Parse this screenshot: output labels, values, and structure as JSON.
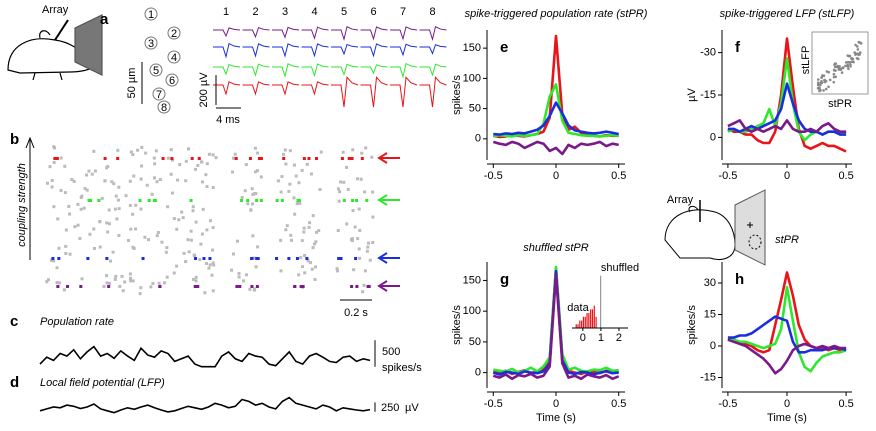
{
  "panel_a": {
    "letter": "a",
    "array_label": "Array",
    "electrodes": [
      "1",
      "2",
      "3",
      "4",
      "5",
      "6",
      "7",
      "8"
    ],
    "columns": [
      "1",
      "2",
      "3",
      "4",
      "5",
      "6",
      "7",
      "8"
    ],
    "scale_um": "50 µm",
    "scale_uv": "200 µV",
    "scale_ms": "4 ms"
  },
  "panel_b": {
    "letter": "b",
    "ylabel": "coupling strength",
    "scale_s": "0.2 s"
  },
  "panel_h_array": "Array",
  "chart_data": [
    {
      "type": "trace",
      "letter": "c",
      "title": "Population rate",
      "ylim": [
        0,
        700
      ],
      "scale_bar": {
        "value": 500,
        "unit": "spikes/s"
      },
      "color": "#000",
      "values": [
        150,
        280,
        220,
        350,
        300,
        420,
        250,
        380,
        480,
        300,
        350,
        260,
        400,
        300,
        220,
        450,
        320,
        280,
        400,
        350,
        200,
        250,
        300,
        150,
        100,
        100,
        100,
        300,
        380,
        250,
        200,
        350,
        300,
        280,
        150,
        120,
        250,
        380,
        200,
        150,
        300,
        350,
        280,
        200,
        180,
        280,
        300,
        200,
        250,
        220
      ]
    },
    {
      "type": "trace",
      "letter": "d",
      "title": "Local field potential (LFP)",
      "ylim": [
        -300,
        500
      ],
      "scale_bar": {
        "value": 250,
        "unit": "µV"
      },
      "color": "#000",
      "values": [
        0,
        50,
        100,
        80,
        150,
        120,
        60,
        100,
        180,
        50,
        0,
        -50,
        20,
        80,
        40,
        100,
        150,
        80,
        20,
        -30,
        0,
        60,
        120,
        80,
        40,
        100,
        200,
        150,
        80,
        120,
        300,
        250,
        150,
        200,
        100,
        50,
        250,
        350,
        200,
        150,
        100,
        50,
        150,
        100,
        0,
        80,
        50,
        20,
        0,
        30
      ]
    },
    {
      "type": "line",
      "letter": "e",
      "title": "spike-triggered population rate (stPR)",
      "ylabel": "spikes/s",
      "xlim": [
        -0.55,
        0.55
      ],
      "xticks": [
        -0.5,
        0,
        0.5
      ],
      "ylim": [
        -35,
        180
      ],
      "yticks": [
        0,
        50,
        100,
        150
      ],
      "x": [
        -0.5,
        -0.45,
        -0.4,
        -0.35,
        -0.3,
        -0.25,
        -0.2,
        -0.15,
        -0.1,
        -0.05,
        0,
        0.05,
        0.1,
        0.15,
        0.2,
        0.25,
        0.3,
        0.35,
        0.4,
        0.45,
        0.5
      ],
      "series": [
        {
          "color": "#e8141a",
          "values": [
            5,
            3,
            4,
            6,
            5,
            4,
            6,
            8,
            12,
            35,
            170,
            40,
            15,
            20,
            10,
            6,
            5,
            4,
            6,
            5,
            5
          ]
        },
        {
          "color": "#2ee82e",
          "values": [
            4,
            6,
            5,
            4,
            6,
            5,
            6,
            8,
            25,
            70,
            90,
            30,
            10,
            8,
            6,
            5,
            5,
            4,
            5,
            6,
            5
          ]
        },
        {
          "color": "#1a2ee0",
          "values": [
            8,
            7,
            9,
            8,
            10,
            9,
            12,
            15,
            22,
            38,
            60,
            42,
            22,
            14,
            12,
            10,
            9,
            10,
            12,
            10,
            8
          ]
        },
        {
          "color": "#7a1a8a",
          "values": [
            -5,
            -8,
            -10,
            -5,
            -8,
            -15,
            -10,
            -5,
            -8,
            -20,
            -15,
            -25,
            -10,
            -15,
            -8,
            -10,
            -8,
            -5,
            -12,
            -8,
            -10
          ]
        }
      ]
    },
    {
      "type": "line",
      "letter": "f",
      "title": "spike-triggered LFP (stLFP)",
      "ylabel": "µV",
      "xlim": [
        -0.55,
        0.55
      ],
      "xticks": [
        -0.5,
        0,
        0.5
      ],
      "ylim": [
        8,
        -38
      ],
      "yticks": [
        -30,
        -15,
        0
      ],
      "x": [
        -0.5,
        -0.45,
        -0.4,
        -0.35,
        -0.3,
        -0.25,
        -0.2,
        -0.15,
        -0.1,
        -0.05,
        0,
        0.05,
        0.1,
        0.15,
        0.2,
        0.25,
        0.3,
        0.35,
        0.4,
        0.45,
        0.5
      ],
      "series": [
        {
          "color": "#e8141a",
          "values": [
            -3,
            -2,
            -2,
            -1,
            -1,
            1,
            2,
            2,
            -2,
            -15,
            -35,
            -18,
            -3,
            3,
            4,
            3,
            2,
            3,
            3,
            4,
            5
          ]
        },
        {
          "color": "#2ee82e",
          "values": [
            -2,
            -3,
            -2,
            -2,
            -3,
            -4,
            -5,
            -10,
            -4,
            -12,
            -28,
            -12,
            -2,
            1,
            -1,
            -2,
            -1,
            -2,
            -2,
            -1,
            -2
          ]
        },
        {
          "color": "#1a2ee0",
          "values": [
            -3,
            -3,
            -2,
            -3,
            -4,
            -3,
            -4,
            -5,
            -6,
            -10,
            -19,
            -12,
            -6,
            -3,
            -2,
            -2,
            -1,
            -2,
            -2,
            -1,
            -1
          ]
        },
        {
          "color": "#7a1a8a",
          "values": [
            -4,
            -5,
            -6,
            -3,
            -2,
            -3,
            -2,
            -3,
            -4,
            -3,
            -6,
            -3,
            -2,
            -2,
            -3,
            -2,
            -4,
            -5,
            -3,
            -2,
            -2
          ]
        }
      ],
      "inset": {
        "xlabel": "stPR",
        "ylabel": "stLFP"
      }
    },
    {
      "type": "line",
      "letter": "g",
      "title": "shuffled stPR",
      "ylabel": "spikes/s",
      "xlabel": "Time (s)",
      "xlim": [
        -0.55,
        0.55
      ],
      "xticks": [
        -0.5,
        0,
        0.5
      ],
      "ylim": [
        -25,
        180
      ],
      "yticks": [
        0,
        50,
        100,
        150
      ],
      "x": [
        -0.5,
        -0.45,
        -0.4,
        -0.35,
        -0.3,
        -0.25,
        -0.2,
        -0.15,
        -0.1,
        -0.05,
        0,
        0.05,
        0.1,
        0.15,
        0.2,
        0.25,
        0.3,
        0.35,
        0.4,
        0.45,
        0.5
      ],
      "series": [
        {
          "color": "#e8141a",
          "values": [
            2,
            0,
            3,
            -2,
            1,
            4,
            -1,
            2,
            5,
            20,
            170,
            25,
            3,
            0,
            -2,
            2,
            1,
            -1,
            3,
            0,
            2
          ]
        },
        {
          "color": "#2ee82e",
          "values": [
            5,
            3,
            2,
            6,
            0,
            3,
            8,
            2,
            10,
            25,
            172,
            30,
            5,
            8,
            3,
            2,
            5,
            4,
            8,
            3,
            4
          ]
        },
        {
          "color": "#1a2ee0",
          "values": [
            0,
            -3,
            1,
            0,
            -2,
            2,
            0,
            -1,
            2,
            15,
            165,
            20,
            0,
            -2,
            1,
            0,
            -3,
            0,
            2,
            -1,
            0
          ]
        },
        {
          "color": "#7a1a8a",
          "values": [
            -5,
            -8,
            -3,
            -10,
            -4,
            -6,
            -2,
            -8,
            -5,
            10,
            160,
            15,
            -8,
            -5,
            -10,
            -3,
            -6,
            -8,
            -4,
            -10,
            -6
          ]
        }
      ],
      "inset": {
        "type": "histogram",
        "xlim": [
          -0.6,
          2.5
        ],
        "xticks": [
          0,
          1,
          2
        ],
        "ylim": [
          0,
          15
        ],
        "series": [
          {
            "name": "data",
            "color": "#e8141a",
            "bins": [
              -0.4,
              -0.3,
              -0.2,
              -0.1,
              0,
              0.1,
              0.2,
              0.3,
              0.4,
              0.5,
              0.6,
              0.7,
              0.8
            ],
            "values": [
              1,
              1,
              2,
              2,
              3,
              3,
              4,
              4,
              5,
              5,
              6,
              3
            ]
          },
          {
            "name": "shuffled",
            "color": "#999999",
            "bins": [
              0.95,
              1.05
            ],
            "values": [
              14
            ]
          }
        ]
      }
    },
    {
      "type": "line",
      "letter": "h",
      "title": "stPR",
      "ylabel": "spikes/s",
      "xlabel": "Time (s)",
      "xlim": [
        -0.55,
        0.55
      ],
      "xticks": [
        -0.5,
        0,
        0.5
      ],
      "ylim": [
        -20,
        40
      ],
      "yticks": [
        -15,
        0,
        15,
        30
      ],
      "x": [
        -0.5,
        -0.45,
        -0.4,
        -0.35,
        -0.3,
        -0.25,
        -0.2,
        -0.15,
        -0.1,
        -0.05,
        0,
        0.05,
        0.1,
        0.15,
        0.2,
        0.25,
        0.3,
        0.35,
        0.4,
        0.45,
        0.5
      ],
      "series": [
        {
          "color": "#e8141a",
          "values": [
            3,
            3,
            2,
            1,
            0,
            -2,
            -3,
            -2,
            10,
            22,
            35,
            24,
            10,
            3,
            0,
            -1,
            -1,
            -2,
            -1,
            -2,
            -2
          ]
        },
        {
          "color": "#2ee82e",
          "values": [
            3,
            3,
            2,
            2,
            1,
            0,
            -1,
            0,
            1,
            8,
            28,
            12,
            -3,
            -10,
            -12,
            -8,
            -5,
            -4,
            -3,
            -3,
            -2
          ]
        },
        {
          "color": "#1a2ee0",
          "values": [
            4,
            4,
            5,
            5,
            6,
            8,
            10,
            12,
            14,
            13,
            12,
            2,
            -3,
            -3,
            -2,
            -2,
            -2,
            -1,
            -1,
            -1,
            -2
          ]
        },
        {
          "color": "#7a1a8a",
          "values": [
            3,
            2,
            1,
            0,
            -2,
            -4,
            -6,
            -9,
            -13,
            -11,
            -7,
            -2,
            0,
            1,
            0,
            -1,
            0,
            -1,
            0,
            -1,
            -1
          ]
        }
      ]
    }
  ]
}
